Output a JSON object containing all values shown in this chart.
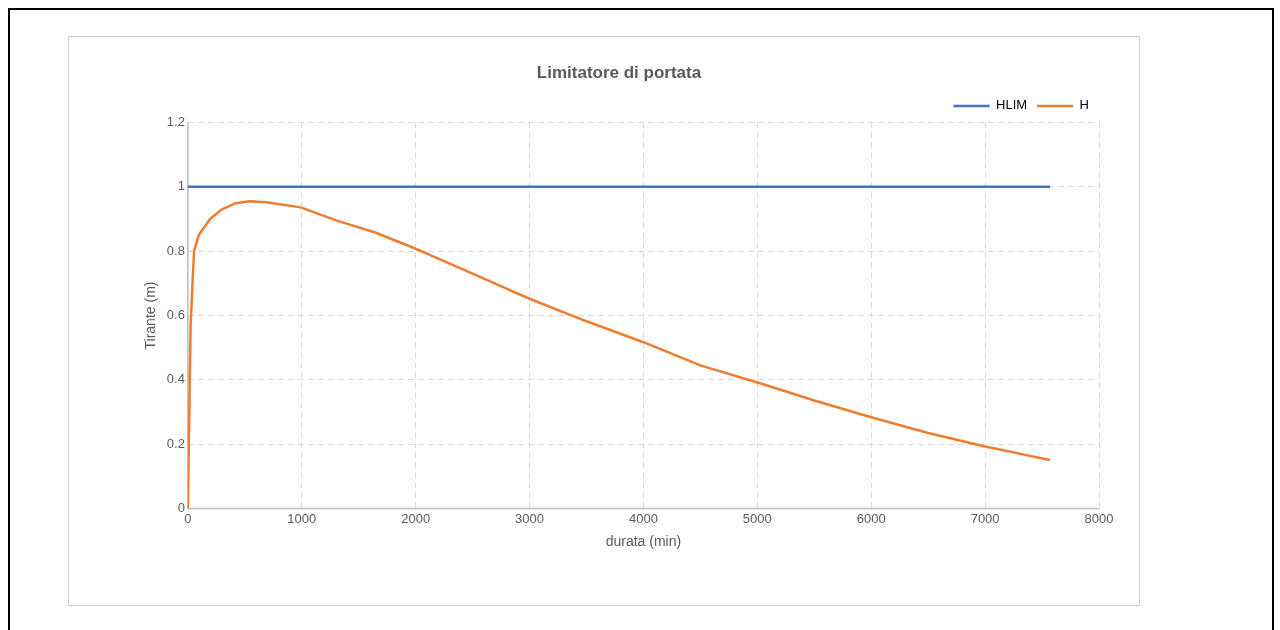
{
  "chart_data": {
    "type": "line",
    "title": "Limitatore di portata",
    "xlabel": "durata (min)",
    "ylabel": "Tirante (m)",
    "xlim": [
      0,
      8000
    ],
    "xticks": [
      0,
      1000,
      2000,
      3000,
      4000,
      5000,
      6000,
      7000,
      8000
    ],
    "ylim": [
      0,
      1.2
    ],
    "yticks": [
      0,
      0.2,
      0.4,
      0.6,
      0.8,
      1,
      1.2
    ],
    "grid": true,
    "legend": "top right",
    "marker": "none",
    "line_style": "solid",
    "series": [
      {
        "name": "HLIM",
        "color": "#4472c4",
        "x": [
          0,
          7570
        ],
        "values": [
          1,
          1
        ]
      },
      {
        "name": "H",
        "color": "#ed7d31",
        "x": [
          0,
          24,
          54,
          96,
          195,
          300,
          420,
          540,
          690,
          990,
          1315,
          1645,
          1990,
          2500,
          3000,
          3500,
          4000,
          4500,
          5000,
          5500,
          6000,
          6500,
          7000,
          7570
        ],
        "values": [
          0,
          0.57,
          0.8,
          0.85,
          0.9,
          0.93,
          0.949,
          0.955,
          0.952,
          0.936,
          0.894,
          0.858,
          0.809,
          0.73,
          0.652,
          0.582,
          0.517,
          0.445,
          0.392,
          0.336,
          0.284,
          0.235,
          0.193,
          0.151
        ]
      }
    ]
  }
}
